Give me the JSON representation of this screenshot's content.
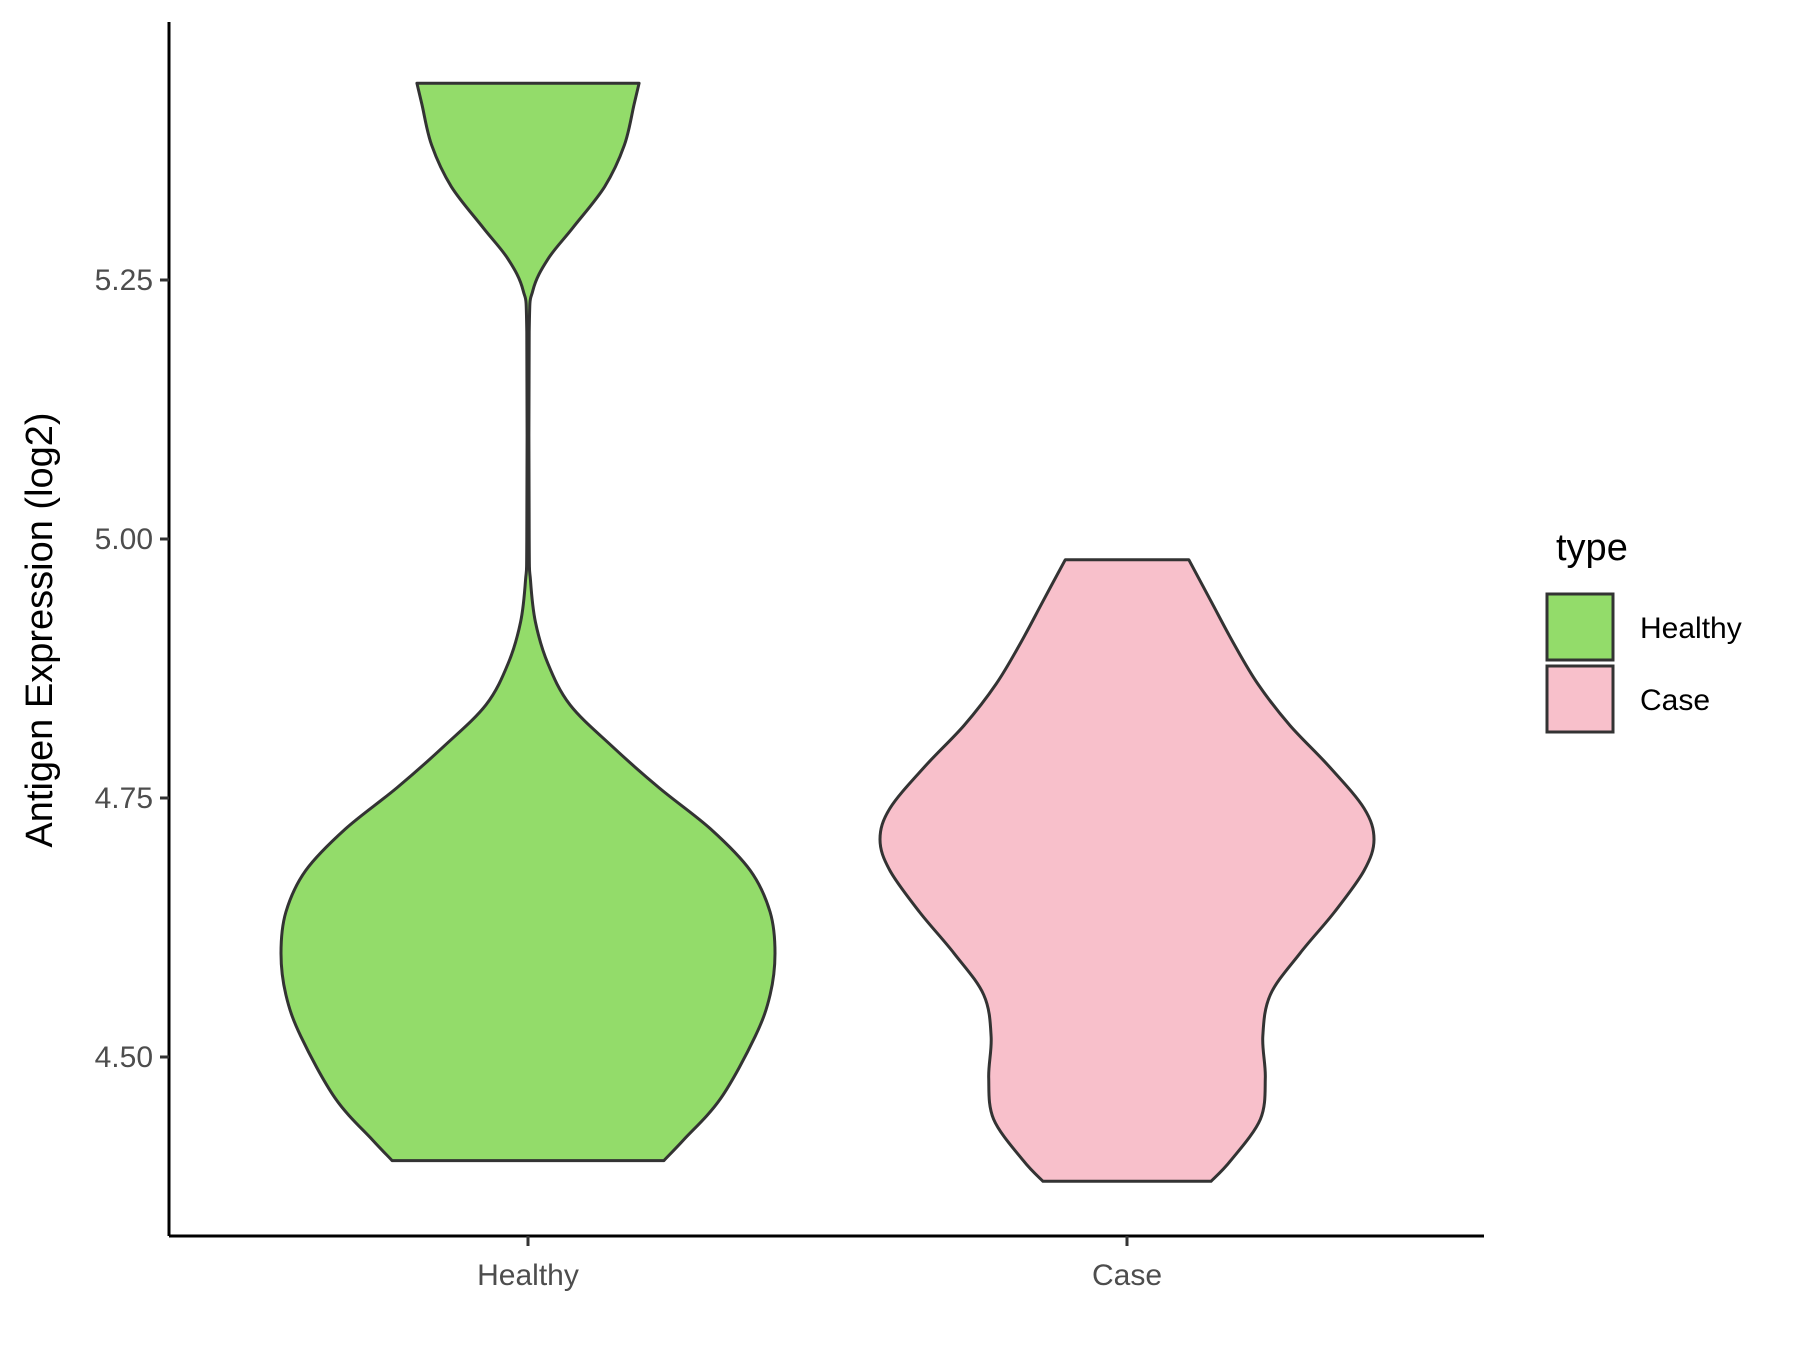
{
  "chart_data": {
    "type": "violin",
    "title": "",
    "xlabel": "",
    "ylabel": "Antigen Expression (log2)",
    "ylim": [
      4.33,
      5.5
    ],
    "yticks": [
      "4.50",
      "4.75",
      "5.00",
      "5.25"
    ],
    "categories": [
      "Healthy",
      "Case"
    ],
    "grid": false,
    "legend": {
      "title": "type",
      "position": "right",
      "entries": [
        {
          "label": "Healthy",
          "color": "#93dc6a"
        },
        {
          "label": "Case",
          "color": "#f8c0cb"
        }
      ]
    },
    "series": [
      {
        "category": "Healthy",
        "color": "#93dc6a",
        "min": 4.4,
        "max": 5.44,
        "density_profile": [
          [
            4.4,
            0.55
          ],
          [
            4.42,
            0.63
          ],
          [
            4.46,
            0.78
          ],
          [
            4.52,
            0.92
          ],
          [
            4.56,
            0.98
          ],
          [
            4.6,
            1.0
          ],
          [
            4.64,
            0.98
          ],
          [
            4.68,
            0.9
          ],
          [
            4.72,
            0.74
          ],
          [
            4.76,
            0.53
          ],
          [
            4.8,
            0.34
          ],
          [
            4.84,
            0.17
          ],
          [
            4.88,
            0.08
          ],
          [
            4.92,
            0.03
          ],
          [
            4.96,
            0.01
          ],
          [
            5.0,
            0.005
          ],
          [
            5.2,
            0.005
          ],
          [
            5.24,
            0.02
          ],
          [
            5.27,
            0.08
          ],
          [
            5.3,
            0.18
          ],
          [
            5.34,
            0.31
          ],
          [
            5.38,
            0.39
          ],
          [
            5.42,
            0.43
          ],
          [
            5.44,
            0.45
          ]
        ]
      },
      {
        "category": "Case",
        "color": "#f8c0cb",
        "min": 4.38,
        "max": 4.98,
        "density_profile": [
          [
            4.38,
            0.34
          ],
          [
            4.4,
            0.42
          ],
          [
            4.44,
            0.54
          ],
          [
            4.48,
            0.56
          ],
          [
            4.52,
            0.55
          ],
          [
            4.56,
            0.58
          ],
          [
            4.6,
            0.7
          ],
          [
            4.64,
            0.84
          ],
          [
            4.68,
            0.96
          ],
          [
            4.71,
            1.0
          ],
          [
            4.74,
            0.96
          ],
          [
            4.78,
            0.82
          ],
          [
            4.82,
            0.66
          ],
          [
            4.86,
            0.53
          ],
          [
            4.9,
            0.43
          ],
          [
            4.94,
            0.34
          ],
          [
            4.98,
            0.25
          ]
        ]
      }
    ]
  }
}
